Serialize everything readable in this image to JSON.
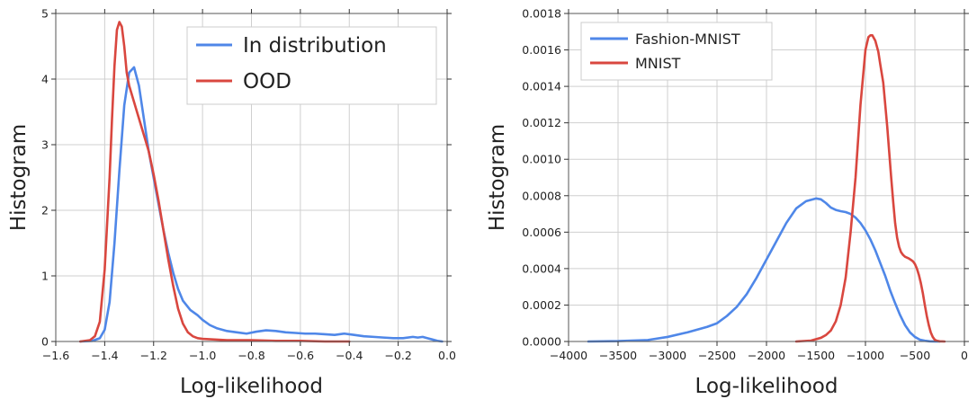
{
  "chart_data": [
    {
      "type": "line",
      "xlabel": "Log-likelihood",
      "ylabel": "Histogram",
      "xlim": [
        -1.6,
        0.0
      ],
      "ylim": [
        0,
        5
      ],
      "xticks": [
        -1.6,
        -1.4,
        -1.2,
        -1.0,
        -0.8,
        -0.6,
        -0.4,
        -0.2,
        0.0
      ],
      "yticks": [
        0,
        1,
        2,
        3,
        4,
        5
      ],
      "xtick_labels": [
        "−1.6",
        "−1.4",
        "−1.2",
        "−1.0",
        "−0.8",
        "−0.6",
        "−0.4",
        "−0.2",
        "0.0"
      ],
      "ytick_labels": [
        "0",
        "1",
        "2",
        "3",
        "4",
        "5"
      ],
      "grid": true,
      "legend_position": "top-right",
      "series": [
        {
          "name": "In distribution",
          "color": "#4f87e8",
          "x": [
            -1.5,
            -1.45,
            -1.42,
            -1.4,
            -1.38,
            -1.36,
            -1.34,
            -1.32,
            -1.3,
            -1.28,
            -1.26,
            -1.24,
            -1.22,
            -1.2,
            -1.18,
            -1.16,
            -1.14,
            -1.12,
            -1.1,
            -1.08,
            -1.05,
            -1.02,
            -1.0,
            -0.97,
            -0.94,
            -0.9,
            -0.86,
            -0.82,
            -0.78,
            -0.74,
            -0.7,
            -0.66,
            -0.62,
            -0.58,
            -0.54,
            -0.5,
            -0.46,
            -0.42,
            -0.38,
            -0.34,
            -0.3,
            -0.26,
            -0.22,
            -0.18,
            -0.14,
            -0.12,
            -0.1,
            -0.08,
            -0.06,
            -0.04,
            -0.02
          ],
          "y": [
            0.0,
            0.01,
            0.05,
            0.18,
            0.6,
            1.5,
            2.6,
            3.6,
            4.1,
            4.18,
            3.9,
            3.4,
            2.9,
            2.5,
            2.1,
            1.7,
            1.35,
            1.05,
            0.8,
            0.62,
            0.48,
            0.4,
            0.33,
            0.25,
            0.2,
            0.16,
            0.14,
            0.12,
            0.15,
            0.17,
            0.16,
            0.14,
            0.13,
            0.12,
            0.12,
            0.11,
            0.1,
            0.12,
            0.1,
            0.08,
            0.07,
            0.06,
            0.05,
            0.05,
            0.07,
            0.06,
            0.07,
            0.05,
            0.03,
            0.01,
            0.0
          ]
        },
        {
          "name": "OOD",
          "color": "#d9473f",
          "x": [
            -1.5,
            -1.46,
            -1.44,
            -1.42,
            -1.4,
            -1.38,
            -1.37,
            -1.36,
            -1.35,
            -1.34,
            -1.33,
            -1.32,
            -1.31,
            -1.3,
            -1.28,
            -1.26,
            -1.24,
            -1.22,
            -1.2,
            -1.18,
            -1.16,
            -1.14,
            -1.12,
            -1.1,
            -1.08,
            -1.06,
            -1.04,
            -1.02,
            -1.0,
            -0.95,
            -0.9,
            -0.8,
            -0.7,
            -0.6,
            -0.5,
            -0.4
          ],
          "y": [
            0.0,
            0.02,
            0.08,
            0.3,
            1.1,
            2.5,
            3.4,
            4.2,
            4.75,
            4.87,
            4.8,
            4.5,
            4.1,
            3.9,
            3.65,
            3.4,
            3.15,
            2.9,
            2.55,
            2.15,
            1.7,
            1.25,
            0.85,
            0.5,
            0.27,
            0.14,
            0.08,
            0.05,
            0.04,
            0.03,
            0.02,
            0.02,
            0.01,
            0.01,
            0.0,
            0.0
          ]
        }
      ]
    },
    {
      "type": "line",
      "xlabel": "Log-likelihood",
      "ylabel": "Histogram",
      "xlim": [
        -4000,
        0
      ],
      "ylim": [
        0,
        0.0018
      ],
      "xticks": [
        -4000,
        -3500,
        -3000,
        -2500,
        -2000,
        -1500,
        -1000,
        -500,
        0
      ],
      "yticks": [
        0,
        0.0002,
        0.0004,
        0.0006,
        0.0008,
        0.001,
        0.0012,
        0.0014,
        0.0016,
        0.0018
      ],
      "xtick_labels": [
        "−4000",
        "−3500",
        "−3000",
        "−2500",
        "−2000",
        "−1500",
        "−1000",
        "−500",
        "0"
      ],
      "ytick_labels": [
        "0.0000",
        "0.0002",
        "0.0004",
        "0.0006",
        "0.0008",
        "0.0010",
        "0.0012",
        "0.0014",
        "0.0016",
        "0.0018"
      ],
      "grid": true,
      "legend_position": "top-left",
      "series": [
        {
          "name": "Fashion-MNIST",
          "color": "#4f87e8",
          "x": [
            -3800,
            -3500,
            -3200,
            -3000,
            -2800,
            -2600,
            -2500,
            -2400,
            -2300,
            -2200,
            -2100,
            -2000,
            -1900,
            -1800,
            -1700,
            -1600,
            -1500,
            -1450,
            -1400,
            -1350,
            -1300,
            -1250,
            -1200,
            -1150,
            -1100,
            -1050,
            -1000,
            -950,
            -900,
            -850,
            -800,
            -750,
            -700,
            -650,
            -600,
            -550,
            -500,
            -450,
            -400,
            -350,
            -300,
            -250
          ],
          "y": [
            0.0,
            2e-06,
            8e-06,
            2.5e-05,
            5e-05,
            8e-05,
            0.0001,
            0.00014,
            0.00019,
            0.00026,
            0.00035,
            0.00045,
            0.00055,
            0.00065,
            0.00073,
            0.00077,
            0.000785,
            0.00078,
            0.00076,
            0.000735,
            0.000722,
            0.000715,
            0.00071,
            0.0007,
            0.00068,
            0.00065,
            0.00061,
            0.00056,
            0.0005,
            0.00043,
            0.00036,
            0.00028,
            0.00021,
            0.000145,
            9e-05,
            5e-05,
            2.5e-05,
            1e-05,
            4e-06,
            1e-06,
            0.0,
            0.0
          ]
        },
        {
          "name": "MNIST",
          "color": "#d9473f",
          "x": [
            -1700,
            -1550,
            -1450,
            -1400,
            -1350,
            -1300,
            -1250,
            -1200,
            -1150,
            -1100,
            -1050,
            -1000,
            -970,
            -950,
            -930,
            -900,
            -870,
            -850,
            -820,
            -800,
            -780,
            -760,
            -740,
            -720,
            -700,
            -680,
            -660,
            -640,
            -620,
            -600,
            -580,
            -560,
            -540,
            -520,
            -500,
            -480,
            -460,
            -440,
            -420,
            -400,
            -380,
            -360,
            -340,
            -320,
            -300,
            -280,
            -250,
            -200
          ],
          "y": [
            0.0,
            5e-06,
            2e-05,
            3.5e-05,
            6e-05,
            0.00011,
            0.0002,
            0.00035,
            0.0006,
            0.0009,
            0.0013,
            0.0016,
            0.00167,
            0.00168,
            0.00168,
            0.00165,
            0.00159,
            0.00152,
            0.00142,
            0.0013,
            0.00118,
            0.00104,
            0.0009,
            0.00077,
            0.00065,
            0.00057,
            0.00052,
            0.00049,
            0.000475,
            0.000465,
            0.00046,
            0.000455,
            0.000448,
            0.00044,
            0.000425,
            0.0004,
            0.000365,
            0.00032,
            0.000265,
            0.0002,
            0.00014,
            9e-05,
            5e-05,
            2.5e-05,
            1e-05,
            4e-06,
            1e-06,
            0.0
          ]
        }
      ]
    }
  ]
}
